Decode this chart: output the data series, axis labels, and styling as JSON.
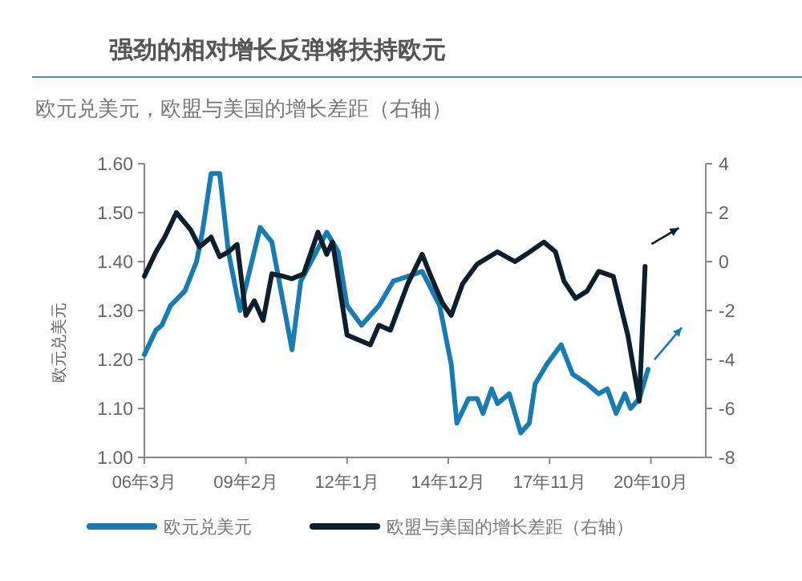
{
  "chart_data": {
    "type": "line",
    "title": "强劲的相对增长反弹将扶持欧元",
    "subtitle": "欧元兑美元，欧盟与美国的增长差距（右轴）",
    "ylabel": "欧元兑美元",
    "xlim": [
      "2006-03",
      "2022-05"
    ],
    "xticks": [
      {
        "value": "2006-03",
        "label": "06年3月"
      },
      {
        "value": "2009-02",
        "label": "09年2月"
      },
      {
        "value": "2012-01",
        "label": "12年1月"
      },
      {
        "value": "2014-12",
        "label": "14年12月"
      },
      {
        "value": "2017-11",
        "label": "17年11月"
      },
      {
        "value": "2020-10",
        "label": "20年10月"
      }
    ],
    "ylim": [
      1.0,
      1.6
    ],
    "yticks": [
      {
        "value": 1.0,
        "label": "1.00"
      },
      {
        "value": 1.1,
        "label": "1.10"
      },
      {
        "value": 1.2,
        "label": "1.20"
      },
      {
        "value": 1.3,
        "label": "1.30"
      },
      {
        "value": 1.4,
        "label": "1.40"
      },
      {
        "value": 1.5,
        "label": "1.50"
      },
      {
        "value": 1.6,
        "label": "1.60"
      }
    ],
    "y2lim": [
      -8,
      4
    ],
    "y2ticks": [
      -8,
      -6,
      -4,
      -2,
      0,
      2,
      4
    ],
    "legend": "bottom",
    "grid": false,
    "series": [
      {
        "name": "欧元兑美元",
        "color": "#1a7bb0",
        "x": [
          "2006-03",
          "2006-07",
          "2006-09",
          "2006-12",
          "2007-05",
          "2007-09",
          "2007-11",
          "2008-02",
          "2008-05",
          "2008-08",
          "2008-12",
          "2009-07",
          "2009-11",
          "2010-06",
          "2010-09",
          "2011-06",
          "2011-10",
          "2012-01",
          "2012-06",
          "2012-12",
          "2013-05",
          "2013-10",
          "2014-03",
          "2014-09",
          "2015-01",
          "2015-03",
          "2015-07",
          "2015-10",
          "2015-12",
          "2016-03",
          "2016-05",
          "2016-09",
          "2017-01",
          "2017-04",
          "2017-06",
          "2017-10",
          "2018-03",
          "2018-07",
          "2018-12",
          "2019-04",
          "2019-07",
          "2019-10",
          "2020-01",
          "2020-03",
          "2020-06",
          "2020-09"
        ],
        "values": [
          1.21,
          1.26,
          1.27,
          1.31,
          1.34,
          1.4,
          1.46,
          1.58,
          1.58,
          1.42,
          1.3,
          1.47,
          1.44,
          1.22,
          1.36,
          1.46,
          1.42,
          1.31,
          1.27,
          1.31,
          1.36,
          1.37,
          1.38,
          1.31,
          1.19,
          1.07,
          1.12,
          1.12,
          1.09,
          1.14,
          1.11,
          1.13,
          1.05,
          1.07,
          1.15,
          1.19,
          1.23,
          1.17,
          1.15,
          1.13,
          1.14,
          1.09,
          1.13,
          1.1,
          1.12,
          1.18
        ]
      },
      {
        "name": "欧盟与美国的增长差距（右轴）",
        "color": "#0d1f2d",
        "axis": "y2",
        "x": [
          "2006-03",
          "2006-07",
          "2006-10",
          "2007-02",
          "2007-07",
          "2007-10",
          "2008-02",
          "2008-05",
          "2008-08",
          "2008-11",
          "2009-02",
          "2009-05",
          "2009-08",
          "2009-11",
          "2010-03",
          "2010-06",
          "2010-10",
          "2011-03",
          "2011-06",
          "2011-08",
          "2012-01",
          "2012-05",
          "2012-09",
          "2012-12",
          "2013-04",
          "2013-10",
          "2014-03",
          "2014-06",
          "2014-10",
          "2015-01",
          "2015-05",
          "2015-10",
          "2016-05",
          "2016-11",
          "2017-03",
          "2017-09",
          "2018-01",
          "2018-04",
          "2018-08",
          "2018-12",
          "2019-04",
          "2019-09",
          "2020-02",
          "2020-06",
          "2020-08"
        ],
        "values": [
          -0.6,
          0.4,
          1.0,
          2.0,
          1.3,
          0.6,
          1.0,
          0.2,
          0.4,
          0.7,
          -2.2,
          -1.6,
          -2.4,
          -0.5,
          -0.6,
          -0.7,
          -0.5,
          1.2,
          0.3,
          0.8,
          -3.0,
          -3.2,
          -3.4,
          -2.6,
          -2.8,
          -0.9,
          0.3,
          -0.6,
          -1.7,
          -2.2,
          -0.9,
          -0.1,
          0.4,
          0.0,
          0.3,
          0.8,
          0.4,
          -0.8,
          -1.5,
          -1.2,
          -0.4,
          -0.6,
          -3.0,
          -5.7,
          -0.2
        ]
      }
    ]
  }
}
